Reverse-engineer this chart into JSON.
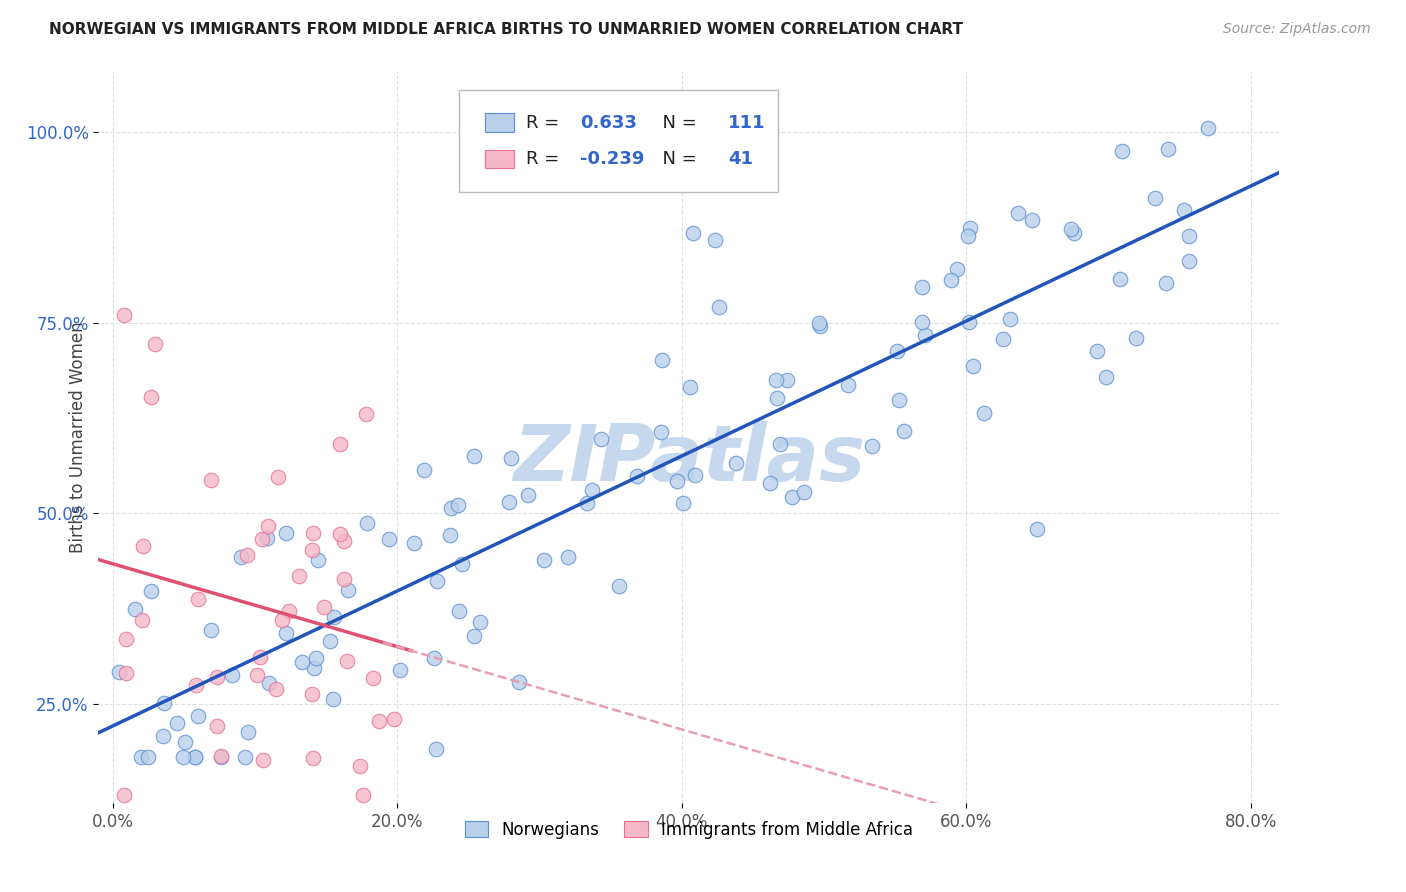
{
  "title": "NORWEGIAN VS IMMIGRANTS FROM MIDDLE AFRICA BIRTHS TO UNMARRIED WOMEN CORRELATION CHART",
  "source_text": "Source: ZipAtlas.com",
  "ylabel": "Births to Unmarried Women",
  "xlabel_vals": [
    0,
    20,
    40,
    60,
    80
  ],
  "ylabel_vals": [
    25,
    50,
    75,
    100
  ],
  "xlim": [
    -1,
    82
  ],
  "ylim": [
    12,
    108
  ],
  "blue_R": "0.633",
  "blue_N": "111",
  "pink_R": "-0.239",
  "pink_N": "41",
  "blue_fill": "#b8d0ea",
  "pink_fill": "#f5b8c8",
  "blue_edge": "#5b8fd4",
  "pink_edge": "#e87090",
  "blue_line": "#2255bb",
  "pink_line": "#e05070",
  "pink_line_dashed": "#e8a0b0",
  "r_n_color": "#3366cc",
  "legend_label_blue": "Norwegians",
  "legend_label_pink": "Immigrants from Middle Africa",
  "watermark": "ZIPatlas",
  "watermark_color": "#c5d8ee",
  "grid_color": "#e0e0e0",
  "tick_color_x": "#555555",
  "tick_color_y": "#3366cc",
  "title_color": "#222222",
  "source_color": "#999999",
  "ylabel_color": "#444444"
}
